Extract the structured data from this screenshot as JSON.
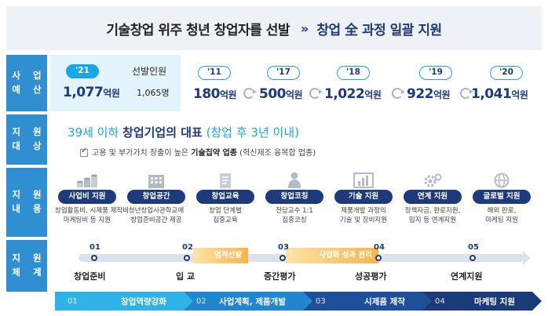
{
  "header": {
    "title": "기술창업 위주 청년 창업자를 선발",
    "arrows": "»",
    "subtitle": "창업 全 과정 일괄 지원"
  },
  "budget": {
    "label": [
      "사 업",
      "예 산"
    ],
    "highlight_year": "'21",
    "highlight_amount": "1,077",
    "unit": "억원",
    "selected_label": "선발인원",
    "selected_count": "1,065명",
    "years": [
      {
        "year": "'11",
        "amount": "180"
      },
      {
        "year": "'17",
        "amount": "500"
      },
      {
        "year": "'18",
        "amount": "1,022"
      },
      {
        "year": "'19",
        "amount": "922"
      },
      {
        "year": "'20",
        "amount": "1,041"
      }
    ]
  },
  "target": {
    "label": [
      "지 원",
      "대 상"
    ],
    "main_pre": "39세 이하 ",
    "main_bold": "창업기업의 대표",
    "main_post": " (창업 후 3년 이내)",
    "sub_pre": "고용 및 부가가치 창출이 높은 ",
    "sub_bold": "기술집약 업종",
    "sub_post": " (혁신제조 융복합 업종)"
  },
  "content": {
    "label": [
      "지 원",
      "내 용"
    ],
    "items": [
      {
        "icon": "coins-icon",
        "title": "사업비 지원",
        "desc": [
          "창업활동비, 시제품 제작비",
          "마케팅비 등 지원"
        ]
      },
      {
        "icon": "building-icon",
        "title": "창업공간",
        "desc": [
          "청년창업사관학교에",
          "창업준비공간 제공"
        ]
      },
      {
        "icon": "document-icon",
        "title": "창업교육",
        "desc": [
          "창업 단계별",
          "집중교육"
        ]
      },
      {
        "icon": "coach-icon",
        "title": "창업코칭",
        "desc": [
          "전담교수 1:1",
          "집중코칭"
        ]
      },
      {
        "icon": "chart-icon",
        "title": "기술 지원",
        "desc": [
          "제품개발 과정의",
          "기술 및 장비지원"
        ]
      },
      {
        "icon": "gear-icon",
        "title": "연계 지원",
        "desc": [
          "정책자금, 판로지원,",
          "입지 등 연계지원"
        ]
      },
      {
        "icon": "globe-icon",
        "title": "글로벌 지원",
        "desc": [
          "해외 판로,",
          "마케팅 지원"
        ]
      }
    ]
  },
  "system": {
    "label": [
      "지 원",
      "체 계"
    ],
    "steps": [
      {
        "num": "01",
        "label": "창업준비"
      },
      {
        "num": "02",
        "label": "입 교"
      },
      {
        "num": "03",
        "label": "중간평가"
      },
      {
        "num": "04",
        "label": "성공평가"
      },
      {
        "num": "05",
        "label": "연계지원"
      }
    ],
    "bands": [
      "엄격선발",
      "사업화 성과 관리"
    ]
  },
  "phases": [
    {
      "num": "01",
      "label": "창업역량강화",
      "color": "#2fb3e6"
    },
    {
      "num": "02",
      "label": "사업계획, 제품개발",
      "color": "#1f86cf"
    },
    {
      "num": "03",
      "label": "시제품 제작",
      "color": "#1e4f9a"
    },
    {
      "num": "04",
      "label": "마케팅 지원",
      "color": "#1b3a78"
    }
  ]
}
